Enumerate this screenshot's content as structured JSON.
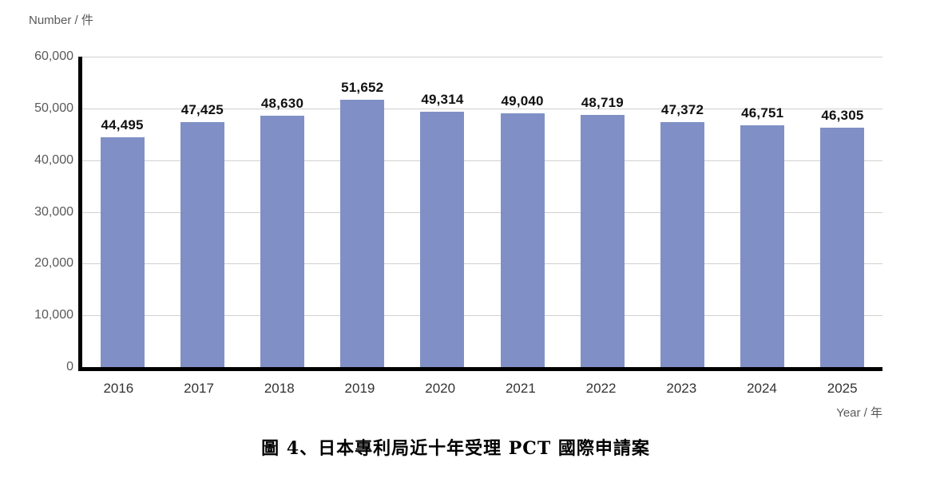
{
  "chart_data": {
    "type": "bar",
    "title": "圖 4、日本專利局近十年受理 PCT 國際申請案",
    "xlabel": "Year / 年",
    "ylabel": "Number / 件",
    "categories": [
      "2016",
      "2017",
      "2018",
      "2019",
      "2020",
      "2021",
      "2022",
      "2023",
      "2024",
      "2025"
    ],
    "values": [
      44495,
      47425,
      48630,
      51652,
      49314,
      49040,
      48719,
      47372,
      46751,
      46305
    ],
    "value_labels": [
      "44,495",
      "47,425",
      "48,630",
      "51,652",
      "49,314",
      "49,040",
      "48,719",
      "47,372",
      "46,751",
      "46,305"
    ],
    "ylim": [
      0,
      60000
    ],
    "ytick_step": 10000,
    "ytick_labels": [
      "0",
      "10,000",
      "20,000",
      "30,000",
      "40,000",
      "50,000",
      "60,000"
    ],
    "grid": "horizontal",
    "legend": "none",
    "colors": {
      "bar": "#8090C6",
      "grid": "#D2D0CE",
      "axis": "#000000",
      "tick_text": "#595959",
      "value_text": "#111111",
      "category_text": "#333333"
    }
  }
}
